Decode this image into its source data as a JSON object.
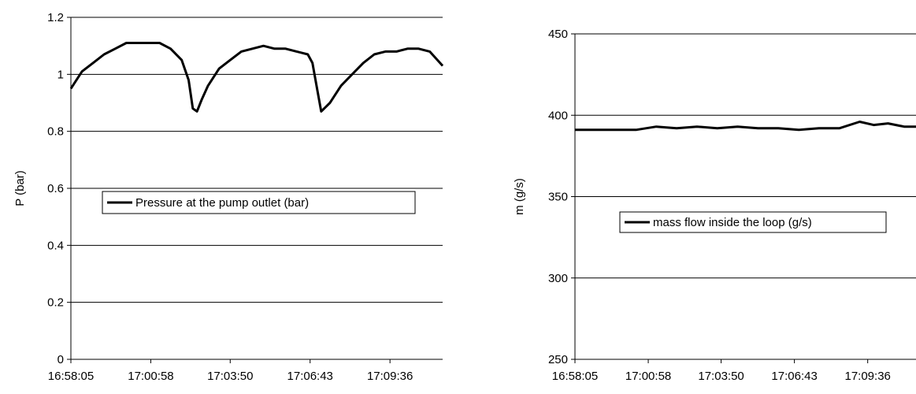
{
  "chart_data": [
    {
      "type": "line",
      "title": "",
      "xlabel": "",
      "ylabel": "P (bar)",
      "ylim": [
        0,
        1.2
      ],
      "yticks": [
        "0",
        "0.2",
        "0.4",
        "0.6",
        "0.8",
        "1",
        "1.2"
      ],
      "xticks": [
        "16:58:05",
        "17:00:58",
        "17:03:50",
        "17:06:43",
        "17:09:36"
      ],
      "xlim": [
        "16:58:05",
        "17:11:30"
      ],
      "grid": "horizontal",
      "legend": "center-left",
      "series": [
        {
          "name": "Pressure at the pump outlet (bar)",
          "color": "#000000",
          "x": [
            "16:58:05",
            "16:58:29",
            "16:58:53",
            "16:59:17",
            "16:59:41",
            "17:00:05",
            "17:00:29",
            "17:00:53",
            "17:01:17",
            "17:01:41",
            "17:02:05",
            "17:02:20",
            "17:02:29",
            "17:02:38",
            "17:02:48",
            "17:03:02",
            "17:03:26",
            "17:03:50",
            "17:04:14",
            "17:04:38",
            "17:05:02",
            "17:05:26",
            "17:05:50",
            "17:06:14",
            "17:06:38",
            "17:06:48",
            "17:06:57",
            "17:07:07",
            "17:07:26",
            "17:07:50",
            "17:08:14",
            "17:08:38",
            "17:09:02",
            "17:09:26",
            "17:09:50",
            "17:10:14",
            "17:10:38",
            "17:11:02",
            "17:11:30"
          ],
          "values": [
            0.95,
            1.01,
            1.04,
            1.07,
            1.09,
            1.11,
            1.11,
            1.11,
            1.11,
            1.09,
            1.05,
            0.98,
            0.88,
            0.87,
            0.91,
            0.96,
            1.02,
            1.05,
            1.08,
            1.09,
            1.1,
            1.09,
            1.09,
            1.08,
            1.07,
            1.04,
            0.96,
            0.87,
            0.9,
            0.96,
            1.0,
            1.04,
            1.07,
            1.08,
            1.08,
            1.09,
            1.09,
            1.08,
            1.03
          ]
        }
      ]
    },
    {
      "type": "line",
      "title": "",
      "xlabel": "",
      "ylabel": "m (g/s)",
      "ylim": [
        250,
        450
      ],
      "yticks": [
        "250",
        "300",
        "350",
        "400",
        "450"
      ],
      "xticks": [
        "16:58:05",
        "17:00:58",
        "17:03:50",
        "17:06:43",
        "17:09:36"
      ],
      "xlim": [
        "16:58:05",
        "17:11:30"
      ],
      "grid": "horizontal",
      "legend": "center",
      "series": [
        {
          "name": "mass flow inside the loop (g/s)",
          "color": "#000000",
          "x": [
            "16:58:05",
            "16:58:53",
            "16:59:41",
            "17:00:29",
            "17:01:17",
            "17:02:05",
            "17:02:53",
            "17:03:41",
            "17:04:29",
            "17:05:17",
            "17:06:05",
            "17:06:53",
            "17:07:41",
            "17:08:29",
            "17:09:17",
            "17:09:50",
            "17:10:24",
            "17:11:02",
            "17:11:30"
          ],
          "values": [
            391,
            391,
            391,
            391,
            393,
            392,
            393,
            392,
            393,
            392,
            392,
            391,
            392,
            392,
            396,
            394,
            395,
            393,
            393
          ]
        }
      ]
    }
  ]
}
